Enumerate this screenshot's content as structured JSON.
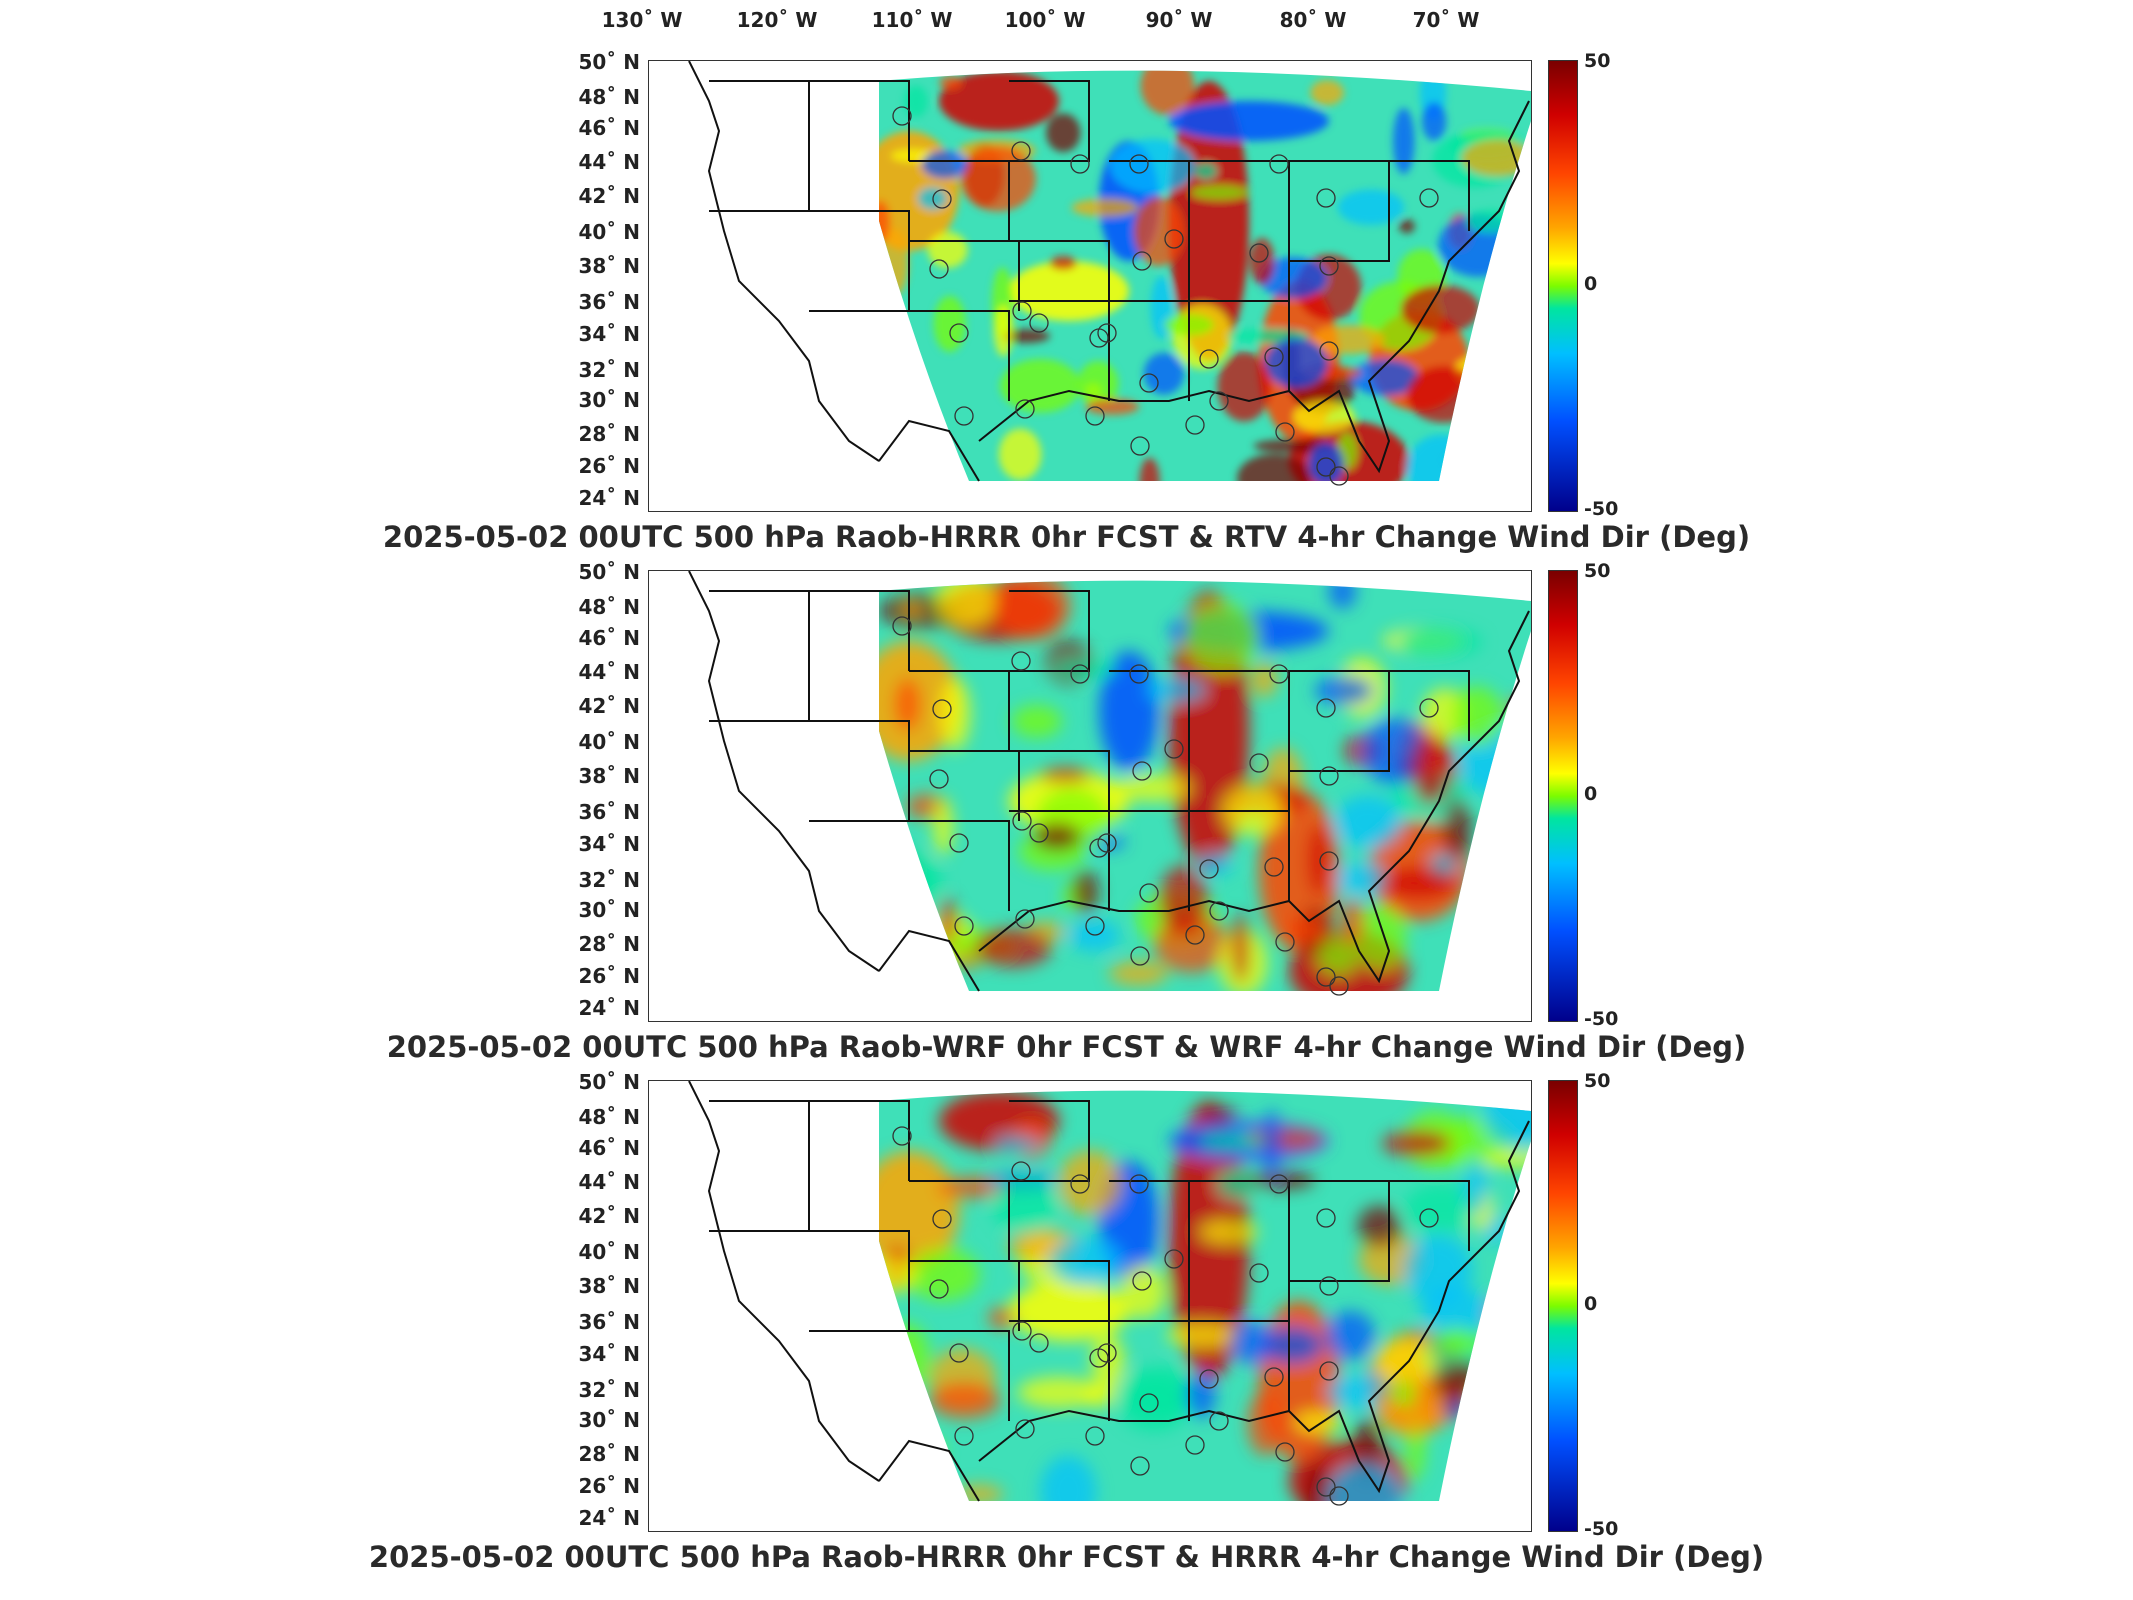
{
  "lon_labels": [
    "130˚ W",
    "120˚ W",
    "110˚ W",
    "100˚ W",
    "90˚ W",
    "80˚ W",
    "70˚ W"
  ],
  "lat_labels": [
    "50˚ N",
    "48˚ N",
    "46˚ N",
    "44˚ N",
    "42˚ N",
    "40˚ N",
    "38˚ N",
    "36˚ N",
    "34˚ N",
    "32˚ N",
    "30˚ N",
    "28˚ N",
    "26˚ N",
    "24˚ N"
  ],
  "colorbar": {
    "max": "50",
    "mid": "0",
    "min": "-50",
    "colors": [
      "#7a0000",
      "#d00000",
      "#ff4500",
      "#ffa500",
      "#ffff00",
      "#7cfc00",
      "#00e5a0",
      "#00bfff",
      "#0050ff",
      "#00008b"
    ]
  },
  "panels": [
    {
      "title": "2025-05-02 00UTC 500 hPa Raob-HRRR 0hr FCST & RTV 4-hr Change Wind Dir (Deg)"
    },
    {
      "title": "2025-05-02 00UTC 500 hPa Raob-WRF 0hr FCST & WRF 4-hr Change Wind Dir (Deg)"
    },
    {
      "title": "2025-05-02 00UTC 500 hPa Raob-HRRR 0hr FCST & HRRR 4-hr Change Wind Dir (Deg)"
    }
  ]
}
